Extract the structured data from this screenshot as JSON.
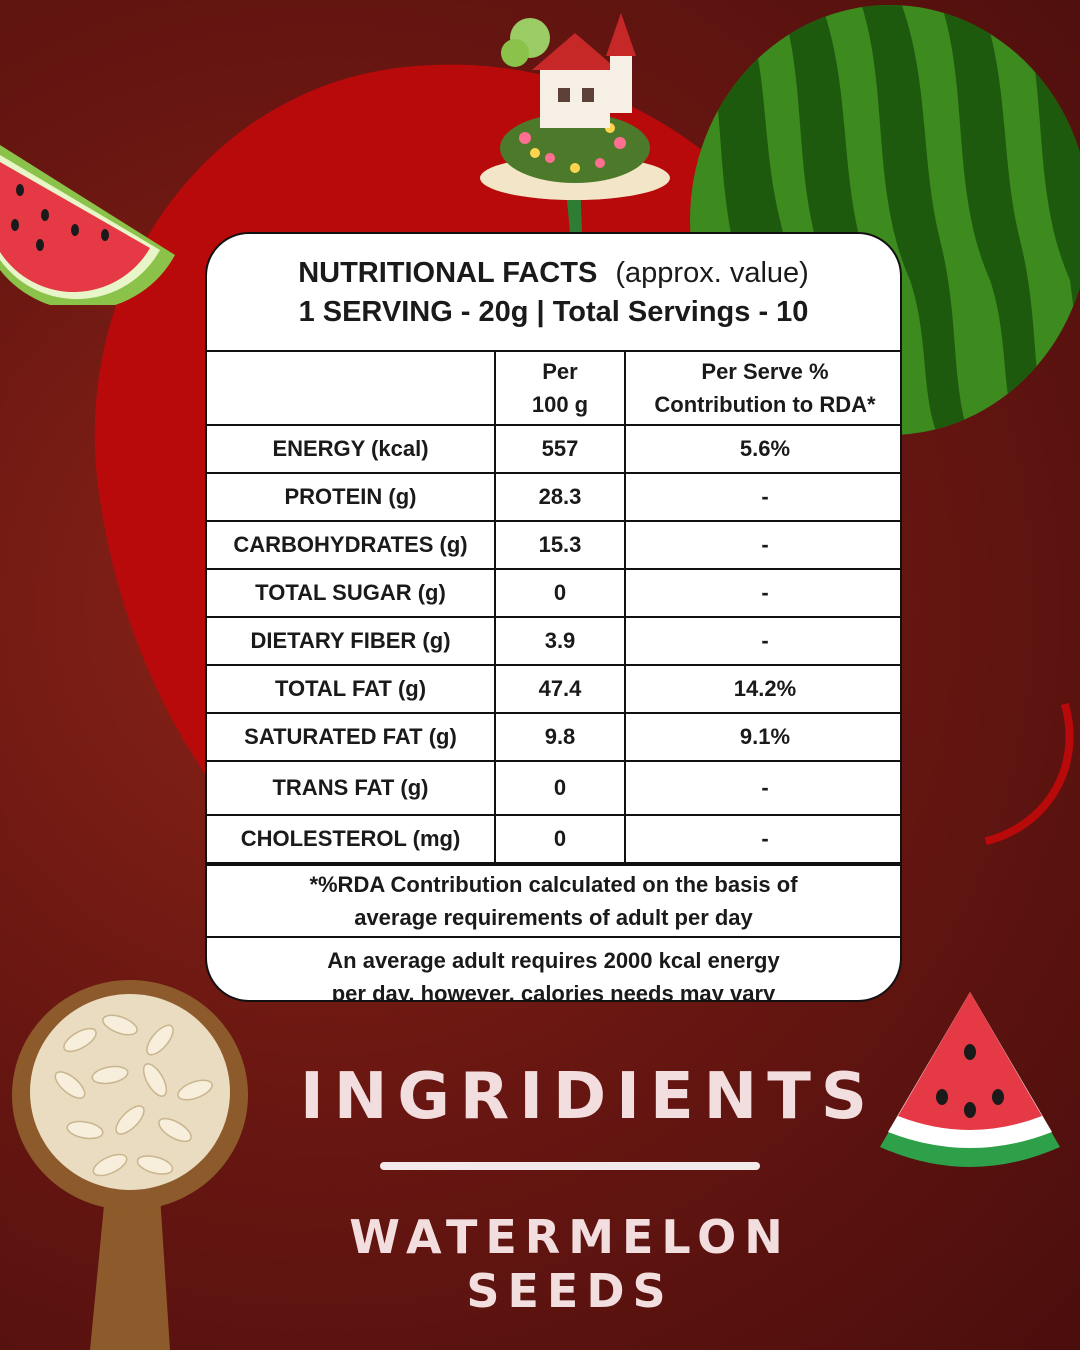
{
  "header": {
    "title": "NUTRITIONAL FACTS",
    "title_note": "(approx. value)",
    "serving": "1 SERVING - 20g | Total Servings - 10"
  },
  "table": {
    "columns": [
      "",
      "Per 100 g",
      "Per Serve % Contribution to RDA*"
    ],
    "col1_line1": "Per",
    "col1_line2": "100 g",
    "col2_line1": "Per Serve %",
    "col2_line2": "Contribution to RDA*",
    "rows": [
      {
        "name": "ENERGY (kcal)",
        "per100": "557",
        "rda": "5.6%"
      },
      {
        "name": "PROTEIN (g)",
        "per100": "28.3",
        "rda": "-"
      },
      {
        "name": "CARBOHYDRATES (g)",
        "per100": "15.3",
        "rda": "-"
      },
      {
        "name": "TOTAL SUGAR (g)",
        "per100": "0",
        "rda": "-"
      },
      {
        "name": "DIETARY FIBER (g)",
        "per100": "3.9",
        "rda": "-"
      },
      {
        "name": "TOTAL FAT (g)",
        "per100": "47.4",
        "rda": "14.2%"
      },
      {
        "name": "SATURATED FAT (g)",
        "per100": "9.8",
        "rda": "9.1%"
      },
      {
        "name": "TRANS FAT (g)",
        "per100": "0",
        "rda": "-"
      },
      {
        "name": "CHOLESTEROL (mg)",
        "per100": "0",
        "rda": "-"
      }
    ]
  },
  "notes": {
    "rda_line1": "*%RDA Contribution calculated on the basis of",
    "rda_line2": "average requirements of adult per day",
    "adult_line1": "An average adult requires 2000 kcal energy",
    "adult_line2": "per day, however, calories needs may vary"
  },
  "footer": {
    "heading": "INGRIDIENTS",
    "ingredient": "WATERMELON SEEDS"
  },
  "colors": {
    "background": "#6b1712",
    "blob": "#b80a0a",
    "card": "#ffffff",
    "title_text": "#f2dede"
  },
  "icons": [
    "watermelon-slice-icon",
    "whole-watermelon-icon",
    "fantasy-house-icon",
    "seed-spoon-icon",
    "watermelon-wedge-icon"
  ]
}
